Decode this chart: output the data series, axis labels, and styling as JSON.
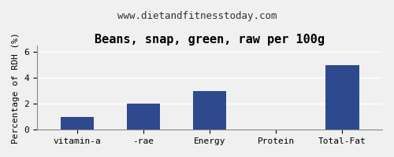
{
  "title": "Beans, snap, green, raw per 100g",
  "subtitle": "www.dietandfitnesstoday.com",
  "categories": [
    "vitamin-a",
    "-rae",
    "Energy",
    "Protein",
    "Total-Fat"
  ],
  "values": [
    1.0,
    2.0,
    3.0,
    0.0,
    5.0
  ],
  "bar_color": "#2e4a8e",
  "ylabel": "Percentage of RDH (%)",
  "ylim": [
    0,
    6.5
  ],
  "yticks": [
    0,
    2,
    4,
    6
  ],
  "background_color": "#f0f0f0",
  "title_fontsize": 11,
  "subtitle_fontsize": 9,
  "ylabel_fontsize": 8,
  "tick_fontsize": 8
}
